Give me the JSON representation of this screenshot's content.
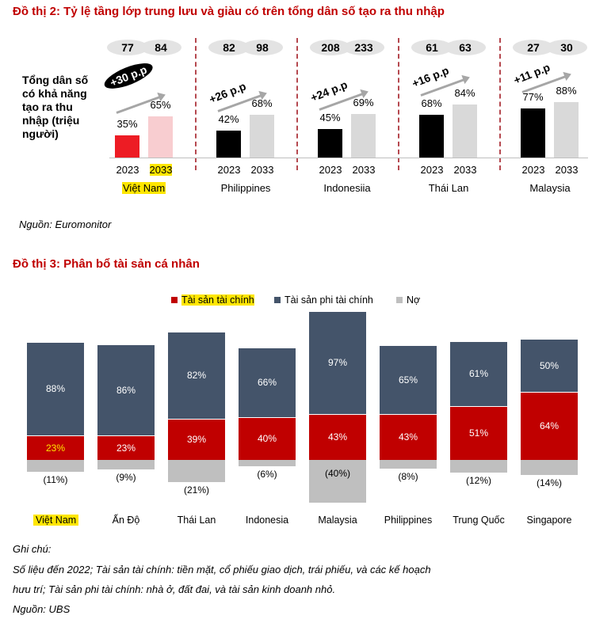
{
  "chart_data": [
    {
      "type": "bar",
      "title": "Đồ thị 2: Tỷ lệ tầng lớp trung lưu và giàu có trên tổng dân số tạo ra thu nhập",
      "ylabel": "Tổng dân số có khả năng tạo ra thu nhập (triệu người)",
      "years": [
        "2023",
        "2033"
      ],
      "groups": [
        {
          "name": "Việt Nam",
          "population": [
            "77",
            "84"
          ],
          "values": [
            35,
            65
          ],
          "labels": [
            "35%",
            "65%"
          ],
          "change": "+30 p.p",
          "colors": [
            "#ED1C24",
            "#F8CDD0"
          ]
        },
        {
          "name": "Philippines",
          "population": [
            "82",
            "98"
          ],
          "values": [
            42,
            68
          ],
          "labels": [
            "42%",
            "68%"
          ],
          "change": "+26 p.p",
          "colors": [
            "#000000",
            "#D9D9D9"
          ]
        },
        {
          "name": "Indonesiia",
          "population": [
            "208",
            "233"
          ],
          "values": [
            45,
            69
          ],
          "labels": [
            "45%",
            "69%"
          ],
          "change": "+24 p.p",
          "colors": [
            "#000000",
            "#D9D9D9"
          ]
        },
        {
          "name": "Thái Lan",
          "population": [
            "61",
            "63"
          ],
          "values": [
            68,
            84
          ],
          "labels": [
            "68%",
            "84%"
          ],
          "change": "+16 p.p",
          "colors": [
            "#000000",
            "#D9D9D9"
          ]
        },
        {
          "name": "Malaysia",
          "population": [
            "27",
            "30"
          ],
          "values": [
            77,
            88
          ],
          "labels": [
            "77%",
            "88%"
          ],
          "change": "+11 p.p",
          "colors": [
            "#000000",
            "#D9D9D9"
          ]
        }
      ],
      "source": "Nguồn: Euromonitor"
    },
    {
      "type": "bar",
      "stacked": true,
      "title": "Đồ thị 3: Phân bổ tài sản cá nhân",
      "legend": [
        "Tài sản tài chính",
        "Tài sản phi tài chính",
        "Nợ"
      ],
      "legend_position": "top",
      "colors": {
        "financial": "#C00000",
        "nonfinancial": "#44546A",
        "debt": "#BFBFBF"
      },
      "categories": [
        "Việt Nam",
        "Ấn Độ",
        "Thái Lan",
        "Indonesia",
        "Malaysia",
        "Philippines",
        "Trung Quốc",
        "Singapore"
      ],
      "series": [
        {
          "name": "Tài sản tài chính",
          "values": [
            23,
            23,
            39,
            40,
            43,
            43,
            51,
            64
          ],
          "labels": [
            "23%",
            "23%",
            "39%",
            "40%",
            "43%",
            "43%",
            "51%",
            "64%"
          ]
        },
        {
          "name": "Tài sản phi tài chính",
          "values": [
            88,
            86,
            82,
            66,
            97,
            65,
            61,
            50
          ],
          "labels": [
            "88%",
            "86%",
            "82%",
            "66%",
            "97%",
            "65%",
            "61%",
            "50%"
          ]
        },
        {
          "name": "Nợ",
          "values": [
            -11,
            -9,
            -21,
            -6,
            -40,
            -8,
            -12,
            -14
          ],
          "labels": [
            "(11%)",
            "(9%)",
            "(21%)",
            "(6%)",
            "(40%)",
            "(8%)",
            "(12%)",
            "(14%)"
          ]
        }
      ]
    }
  ],
  "notes": {
    "heading": "Ghi chú:",
    "line1": "Số liệu đến 2022; Tài sản tài chính: tiền mặt, cổ phiếu giao dịch, trái phiếu, và các kế hoạch",
    "line2": "hưu trí; Tài sản phi tài chính: nhà ở, đất đai, và tài sản kinh doanh nhỏ.",
    "source": "Nguồn: UBS"
  }
}
